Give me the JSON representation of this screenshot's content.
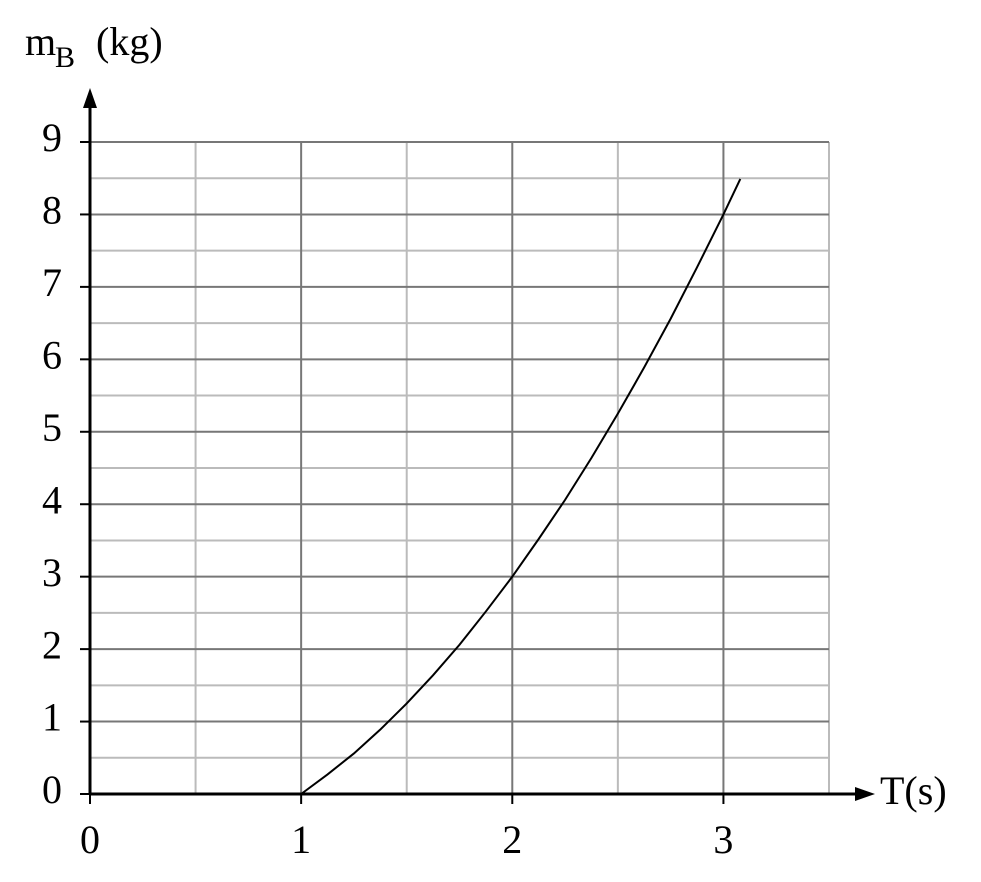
{
  "chart_data": {
    "type": "line",
    "x_label": "T(s)",
    "y_label": "m",
    "y_label_sub": "B",
    "y_label_unit": "(kg)",
    "xlim": [
      0,
      3.5
    ],
    "ylim": [
      0,
      9
    ],
    "xticks": [
      0,
      1,
      2,
      3
    ],
    "yticks": [
      0,
      1,
      2,
      3,
      4,
      5,
      6,
      7,
      8,
      9
    ],
    "x_minor_ticks": [
      0.5,
      1.5,
      2.5,
      3.5
    ],
    "y_minor_ticks": [
      0.5,
      1.5,
      2.5,
      3.5,
      4.5,
      5.5,
      6.5,
      7.5,
      8.5
    ],
    "grid": true,
    "series": [
      {
        "color": "#000000",
        "x": [
          1,
          1.125,
          1.25,
          1.375,
          1.5,
          1.625,
          1.75,
          1.875,
          2,
          2.125,
          2.25,
          2.375,
          2.5,
          2.625,
          2.75,
          2.875,
          3,
          3.08
        ],
        "values": [
          0,
          0.27,
          0.56,
          0.89,
          1.25,
          1.64,
          2.06,
          2.52,
          3,
          3.52,
          4.06,
          4.64,
          5.25,
          5.89,
          6.56,
          7.27,
          8,
          8.49
        ]
      }
    ]
  }
}
